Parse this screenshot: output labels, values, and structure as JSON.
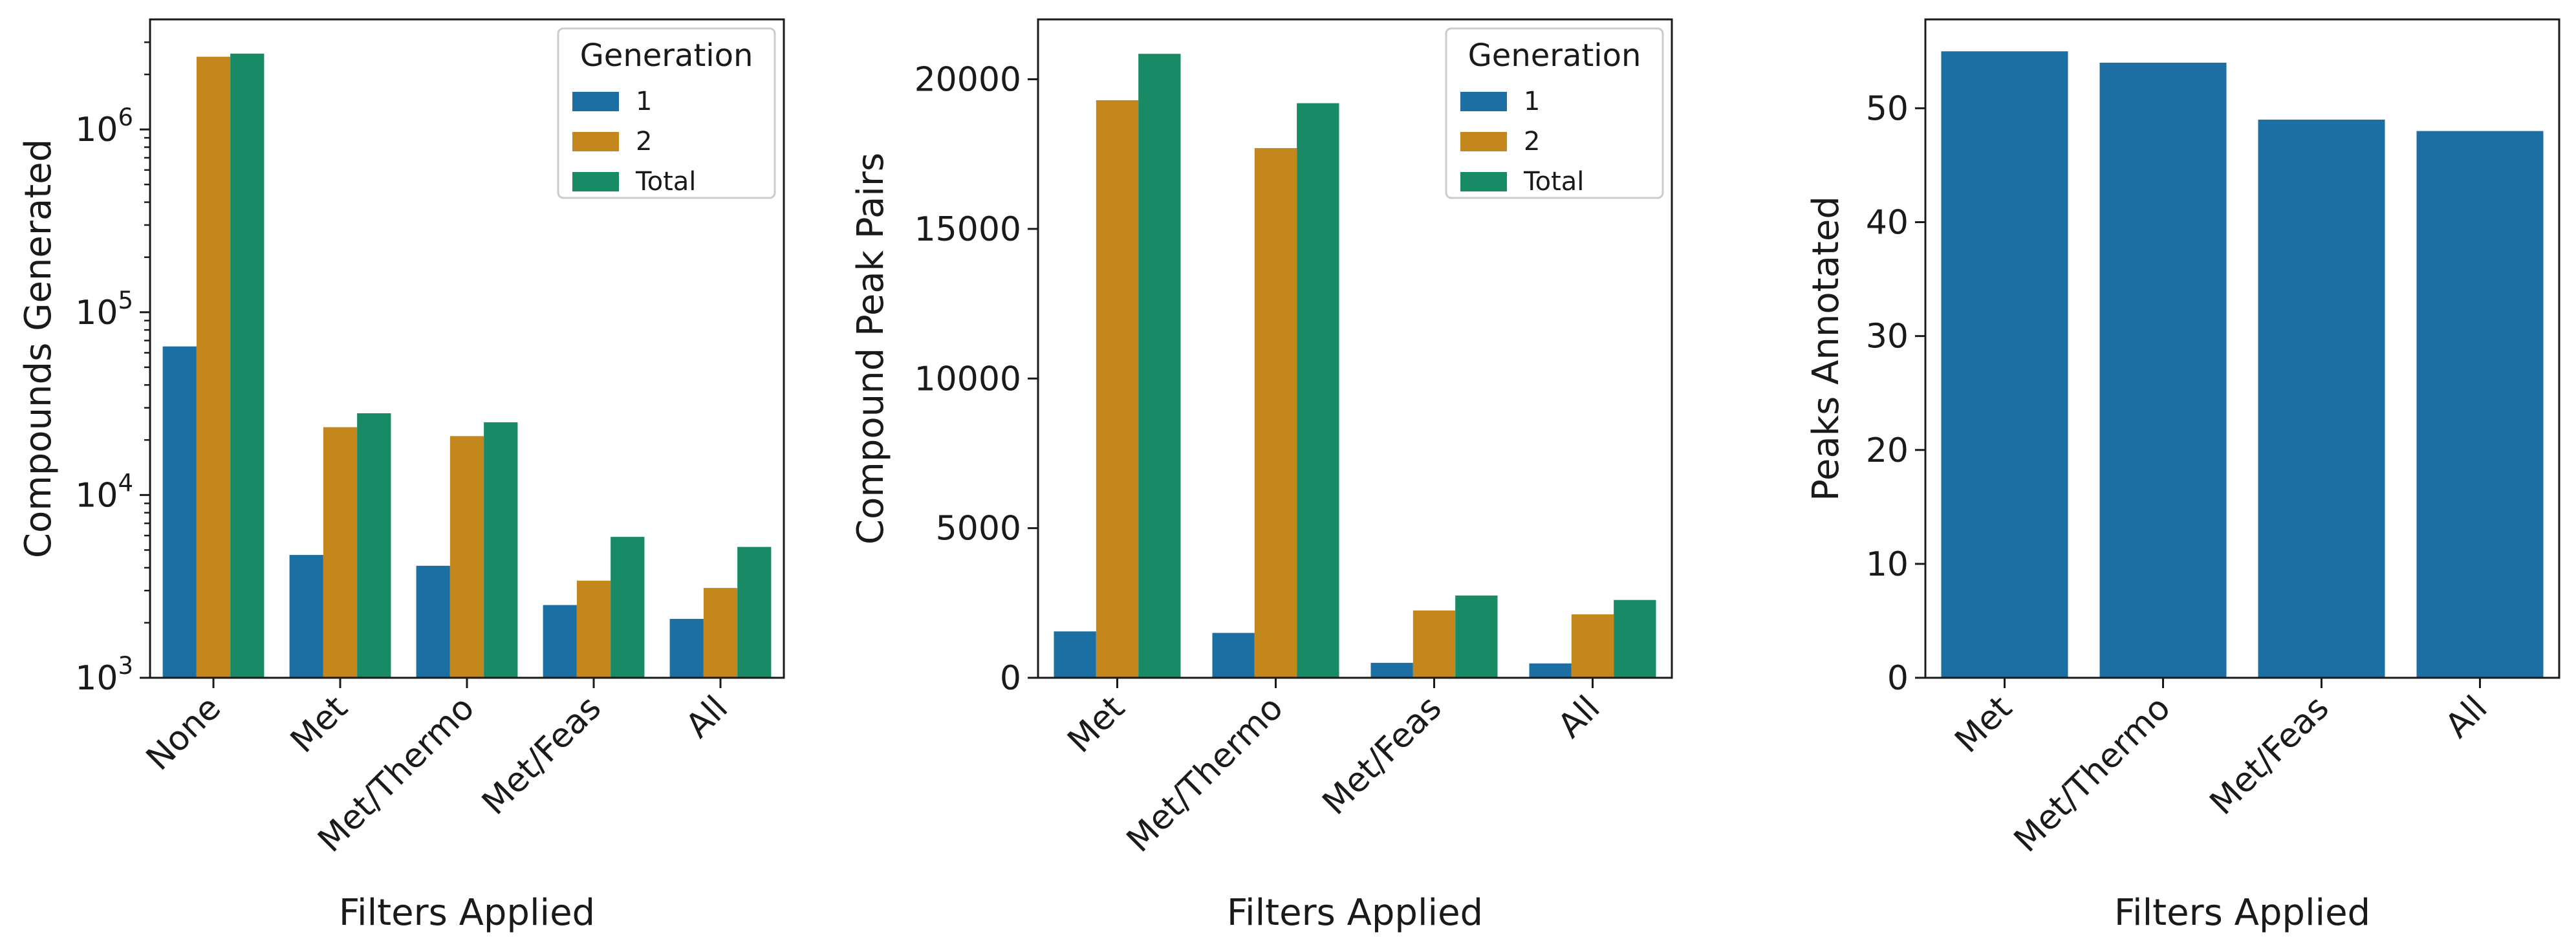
{
  "colors": {
    "series": [
      "#1b6fa3",
      "#c4871e",
      "#188a66"
    ],
    "axis": "#1a1a1a",
    "background": "#ffffff"
  },
  "chart_data": [
    {
      "type": "bar",
      "yscale": "log",
      "ylim": [
        1000,
        4000000
      ],
      "yticks": [
        1000,
        10000,
        100000,
        1000000
      ],
      "ytick_labels": [
        {
          "base": "10",
          "exp": "3"
        },
        {
          "base": "10",
          "exp": "4"
        },
        {
          "base": "10",
          "exp": "5"
        },
        {
          "base": "10",
          "exp": "6"
        }
      ],
      "categories": [
        "None",
        "Met",
        "Met/Thermo",
        "Met/Feas",
        "All"
      ],
      "xlabel": "Filters Applied",
      "ylabel": "Compounds Generated",
      "legend": {
        "title": "Generation",
        "placement": "top-right"
      },
      "series": [
        {
          "name": "1",
          "values": [
            65000,
            4700,
            4100,
            2500,
            2100
          ]
        },
        {
          "name": "2",
          "values": [
            2500000,
            23500,
            21000,
            3400,
            3100
          ]
        },
        {
          "name": "Total",
          "values": [
            2600000,
            28000,
            25000,
            5900,
            5200
          ]
        }
      ]
    },
    {
      "type": "bar",
      "yscale": "linear",
      "ylim": [
        0,
        22000
      ],
      "yticks": [
        0,
        5000,
        10000,
        15000,
        20000
      ],
      "ytick_labels": [
        "0",
        "5000",
        "10000",
        "15000",
        "20000"
      ],
      "categories": [
        "Met",
        "Met/Thermo",
        "Met/Feas",
        "All"
      ],
      "xlabel": "Filters Applied",
      "ylabel": "Compound Peak Pairs",
      "legend": {
        "title": "Generation",
        "placement": "top-right"
      },
      "series": [
        {
          "name": "1",
          "values": [
            1550,
            1500,
            500,
            480
          ]
        },
        {
          "name": "2",
          "values": [
            19300,
            17700,
            2250,
            2120
          ]
        },
        {
          "name": "Total",
          "values": [
            20850,
            19200,
            2750,
            2600
          ]
        }
      ]
    },
    {
      "type": "bar",
      "yscale": "linear",
      "ylim": [
        0,
        57.8
      ],
      "yticks": [
        0,
        10,
        20,
        30,
        40,
        50
      ],
      "ytick_labels": [
        "0",
        "10",
        "20",
        "30",
        "40",
        "50"
      ],
      "categories": [
        "Met",
        "Met/Thermo",
        "Met/Feas",
        "All"
      ],
      "xlabel": "Filters Applied",
      "ylabel": "Peaks Annotated",
      "series": [
        {
          "values": [
            55,
            54,
            49,
            48
          ]
        }
      ]
    }
  ]
}
